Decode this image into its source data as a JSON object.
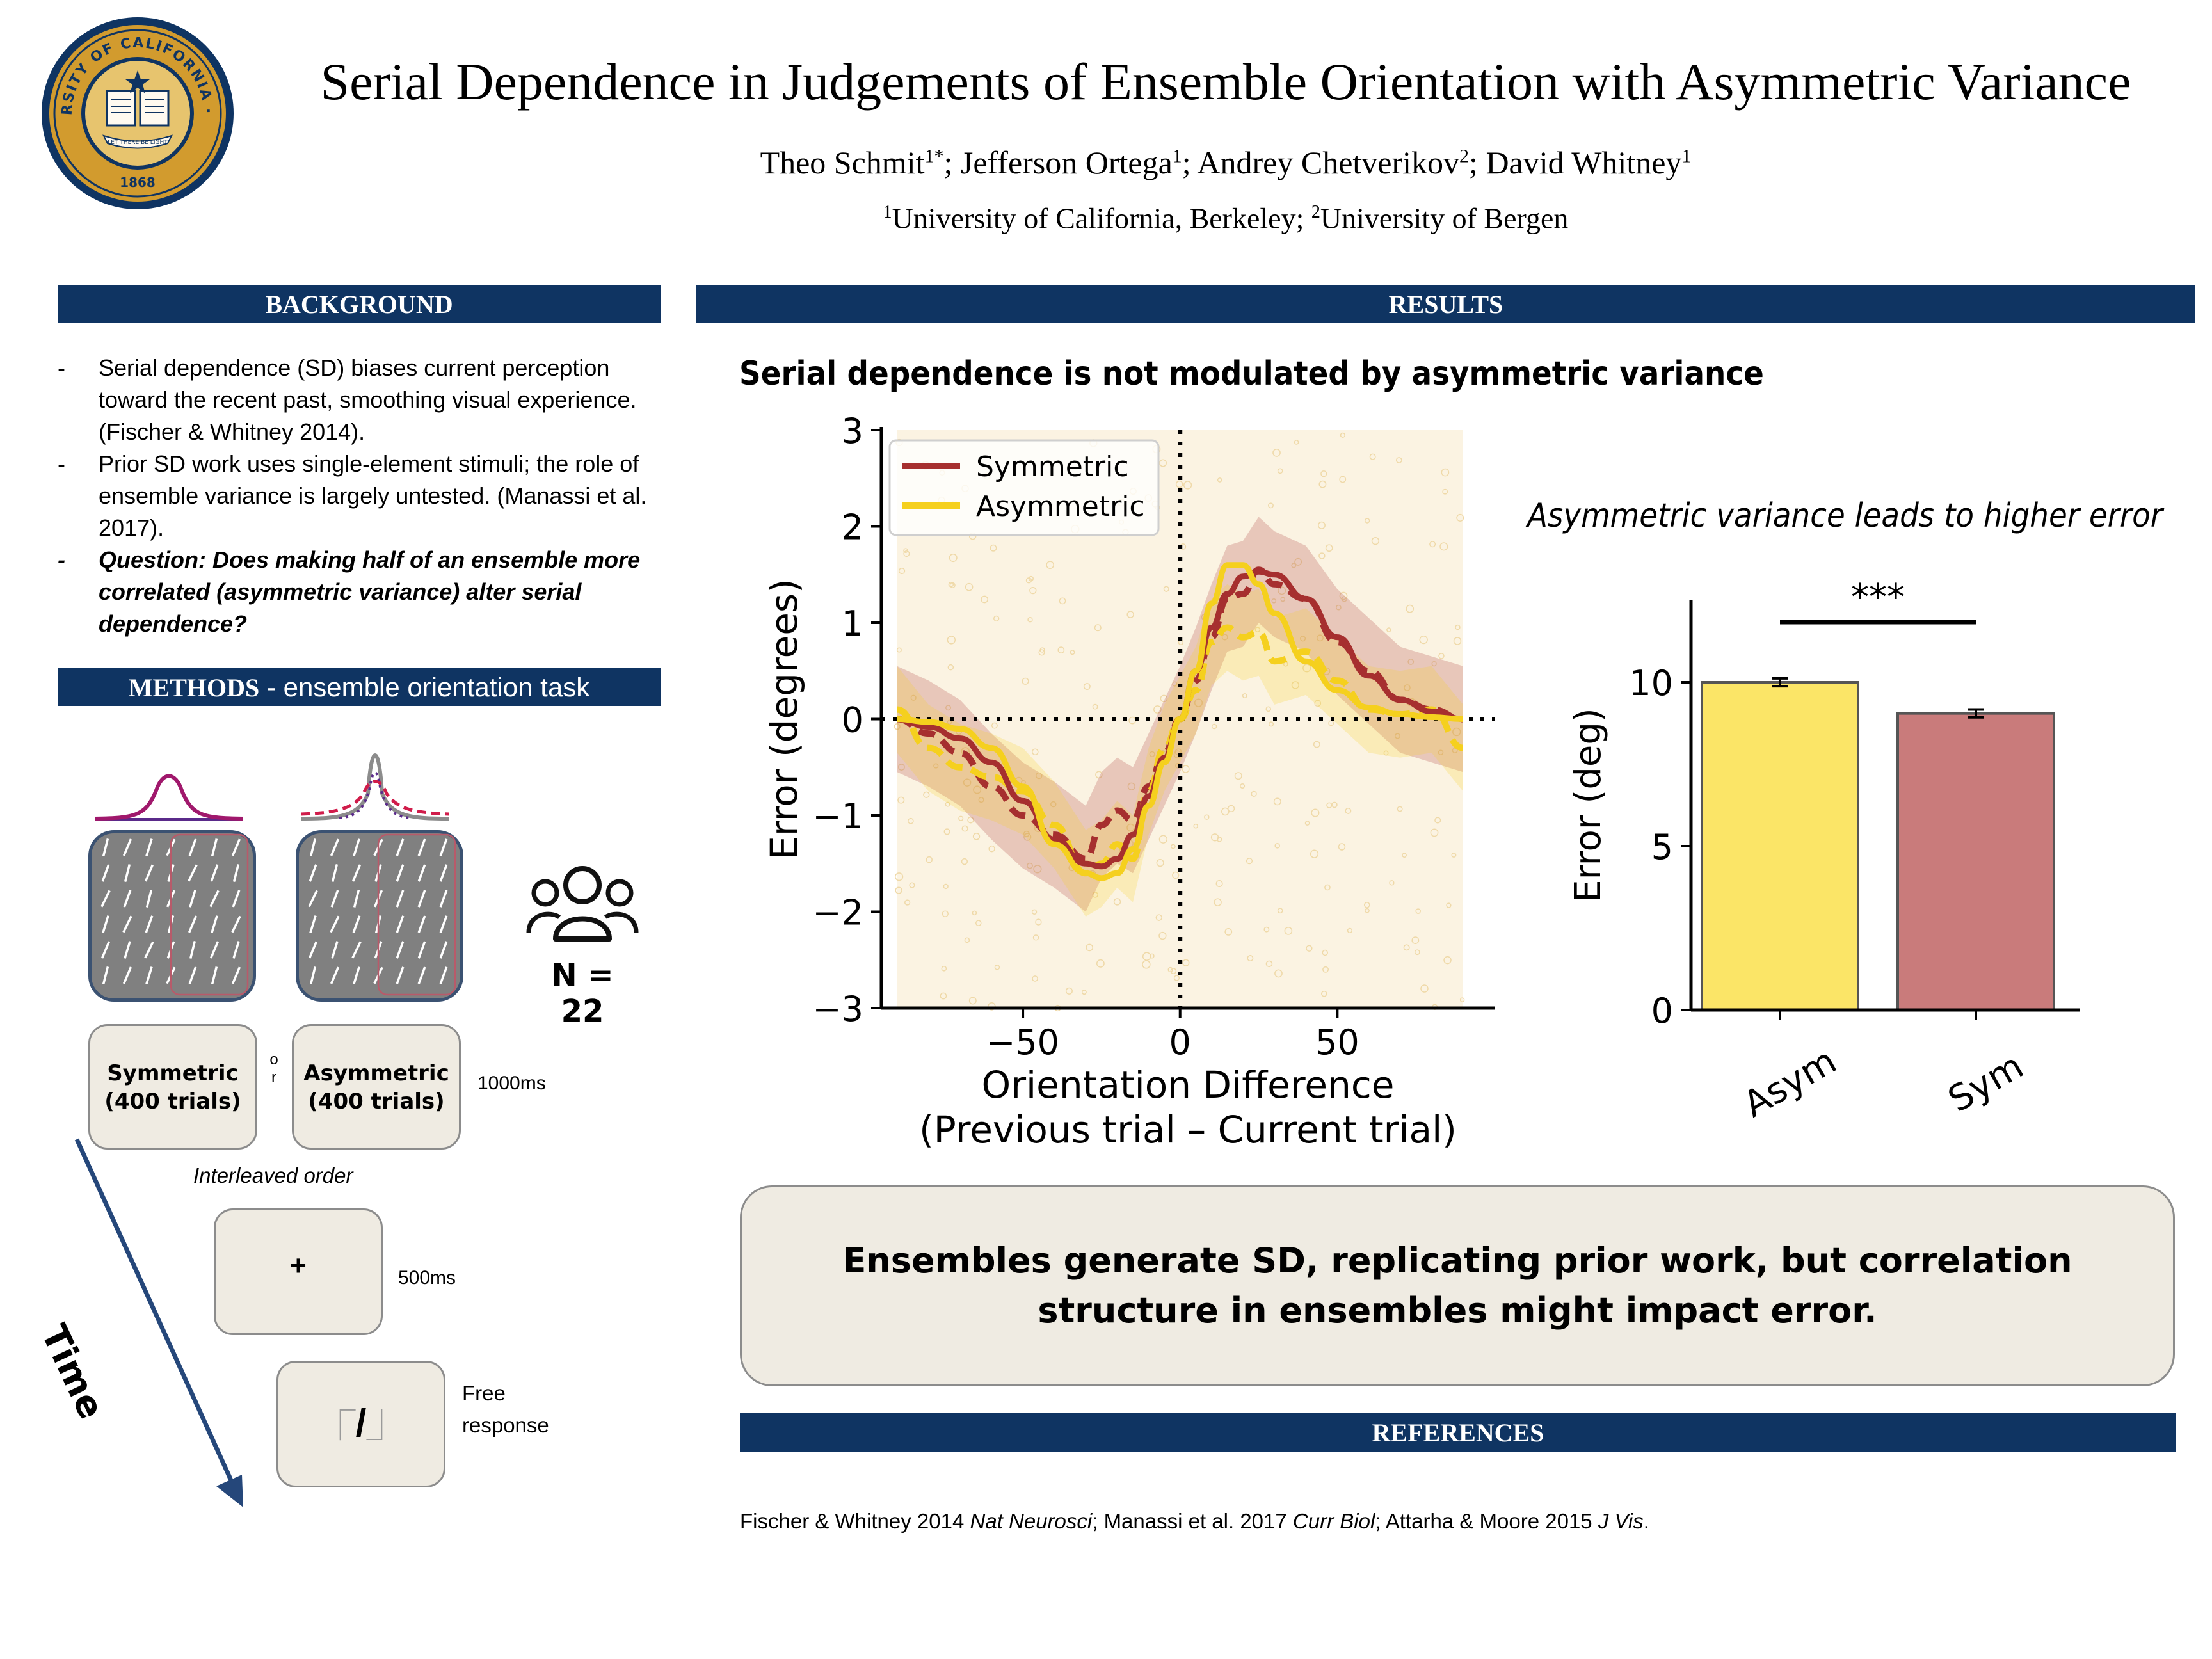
{
  "header": {
    "title": "Serial Dependence in Judgements of Ensemble Orientation with Asymmetric Variance",
    "authors": [
      {
        "name": "Theo Schmit",
        "sup": "1*",
        "sep": "; "
      },
      {
        "name": "Jefferson Ortega",
        "sup": "1",
        "sep": "; "
      },
      {
        "name": "Andrey Chetverikov",
        "sup": "2",
        "sep": "; "
      },
      {
        "name": "David Whitney",
        "sup": "1",
        "sep": ""
      }
    ],
    "affiliations": [
      {
        "sup": "1",
        "name": "University of California, Berkeley",
        "sep": "; "
      },
      {
        "sup": "2",
        "name": "University of Bergen",
        "sep": ""
      }
    ],
    "seal": {
      "text_top": "THE UNIVERSITY OF CALIFORNIA · BERKELEY",
      "motto": "LET THERE BE LIGHT",
      "year": "1868"
    }
  },
  "background": {
    "heading": "BACKGROUND",
    "items": [
      "Serial dependence (SD) biases current perception toward the recent past, smoothing visual experience. (Fischer & Whitney 2014).",
      "Prior SD work uses single-element stimuli; the role of ensemble variance is largely untested. (Manassi et al. 2017).",
      "Question: Does making half of an ensemble more correlated (asymmetric variance) alter serial dependence?"
    ]
  },
  "methods": {
    "heading_bold": "METHODS",
    "heading_rest": " - ensemble orientation task",
    "symmetric_label": "Symmetric",
    "symmetric_trials": "(400 trials)",
    "or_label": "or",
    "asymmetric_label": "Asymmetric",
    "asymmetric_trials": "(400 trials)",
    "stim_duration": "1000ms",
    "interleaved": "Interleaved order",
    "fixation_symbol": "+",
    "fixation_duration": "500ms",
    "response_symbol": "/",
    "response_label_1": "Free",
    "response_label_2": "response",
    "time_label": "Time",
    "n_label": "N = 22"
  },
  "results": {
    "heading": "RESULTS",
    "left_title": "Serial dependence is not modulated by asymmetric variance",
    "right_title": "Asymmetric variance leads to higher error",
    "conclusion": "Ensembles generate SD, replicating prior work, but correlation structure in ensembles might impact error."
  },
  "references": {
    "heading": "REFERENCES",
    "parts": [
      {
        "text": "Fischer & Whitney 2014 ",
        "italic": false
      },
      {
        "text": "Nat Neurosci",
        "italic": true
      },
      {
        "text": "; Manassi et al. 2017 ",
        "italic": false
      },
      {
        "text": "Curr Biol",
        "italic": true
      },
      {
        "text": "; Attarha & Moore 2015 ",
        "italic": false
      },
      {
        "text": "J Vis",
        "italic": true
      },
      {
        "text": ".",
        "italic": false
      }
    ]
  },
  "chart_data": [
    {
      "type": "line",
      "title": "",
      "xlabel": "Orientation Difference",
      "xlabel2": "(Previous trial – Current trial)",
      "ylabel": "Error (degrees)",
      "xlim": [
        -95,
        100
      ],
      "ylim": [
        -3,
        3
      ],
      "xticks": [
        -50,
        0,
        50
      ],
      "xtick_labels": [
        "−50",
        "0",
        "50"
      ],
      "yticks": [
        -3,
        -2,
        -1,
        0,
        1,
        2,
        3
      ],
      "ytick_labels": [
        "−3",
        "−2",
        "−1",
        "0",
        "1",
        "2",
        "3"
      ],
      "legend_position": "top-left",
      "x": [
        -90,
        -80,
        -70,
        -60,
        -50,
        -40,
        -30,
        -25,
        -20,
        -15,
        -10,
        -5,
        0,
        5,
        10,
        15,
        20,
        25,
        30,
        40,
        50,
        60,
        70,
        80,
        90
      ],
      "series": [
        {
          "name": "Symmetric",
          "color": "#a62f2f",
          "fit": [
            0,
            -0.08,
            -0.2,
            -0.45,
            -0.85,
            -1.25,
            -1.5,
            -1.53,
            -1.45,
            -1.2,
            -0.8,
            -0.4,
            0,
            0.5,
            0.95,
            1.3,
            1.48,
            1.53,
            1.5,
            1.25,
            0.85,
            0.45,
            0.2,
            0.08,
            0
          ],
          "raw": [
            0,
            -0.15,
            -0.35,
            -0.7,
            -1.0,
            -1.2,
            -1.45,
            -1.1,
            -0.95,
            -1.05,
            -0.7,
            -0.35,
            0,
            0.4,
            0.85,
            1.25,
            1.3,
            1.55,
            1.4,
            1.25,
            0.8,
            0.5,
            0.2,
            0.1,
            0
          ]
        },
        {
          "name": "Asymmetric",
          "color": "#f5d01e",
          "fit": [
            0,
            -0.03,
            -0.1,
            -0.3,
            -0.7,
            -1.3,
            -1.6,
            -1.65,
            -1.6,
            -1.35,
            -0.9,
            -0.45,
            0,
            0.5,
            1.2,
            1.6,
            1.6,
            1.4,
            1.1,
            0.6,
            0.3,
            0.12,
            0.05,
            0.02,
            0
          ],
          "raw": [
            0.1,
            -0.3,
            -0.5,
            -0.6,
            -0.75,
            -1.1,
            -1.6,
            -1.5,
            -1.3,
            -1.45,
            -0.75,
            -0.3,
            0,
            0.3,
            0.8,
            0.95,
            0.85,
            0.9,
            0.6,
            0.7,
            0.4,
            0.1,
            0.05,
            0.1,
            -0.3
          ]
        }
      ]
    },
    {
      "type": "bar",
      "title": "",
      "xlabel": "",
      "ylabel": "Error (deg)",
      "categories": [
        "Asym",
        "Sym"
      ],
      "values": [
        10.0,
        9.05
      ],
      "errors": [
        0.12,
        0.12
      ],
      "colors": [
        "#fbe567",
        "#c97b7b"
      ],
      "ylim": [
        0,
        12.5
      ],
      "yticks": [
        0,
        5,
        10
      ],
      "significance": "***"
    }
  ]
}
